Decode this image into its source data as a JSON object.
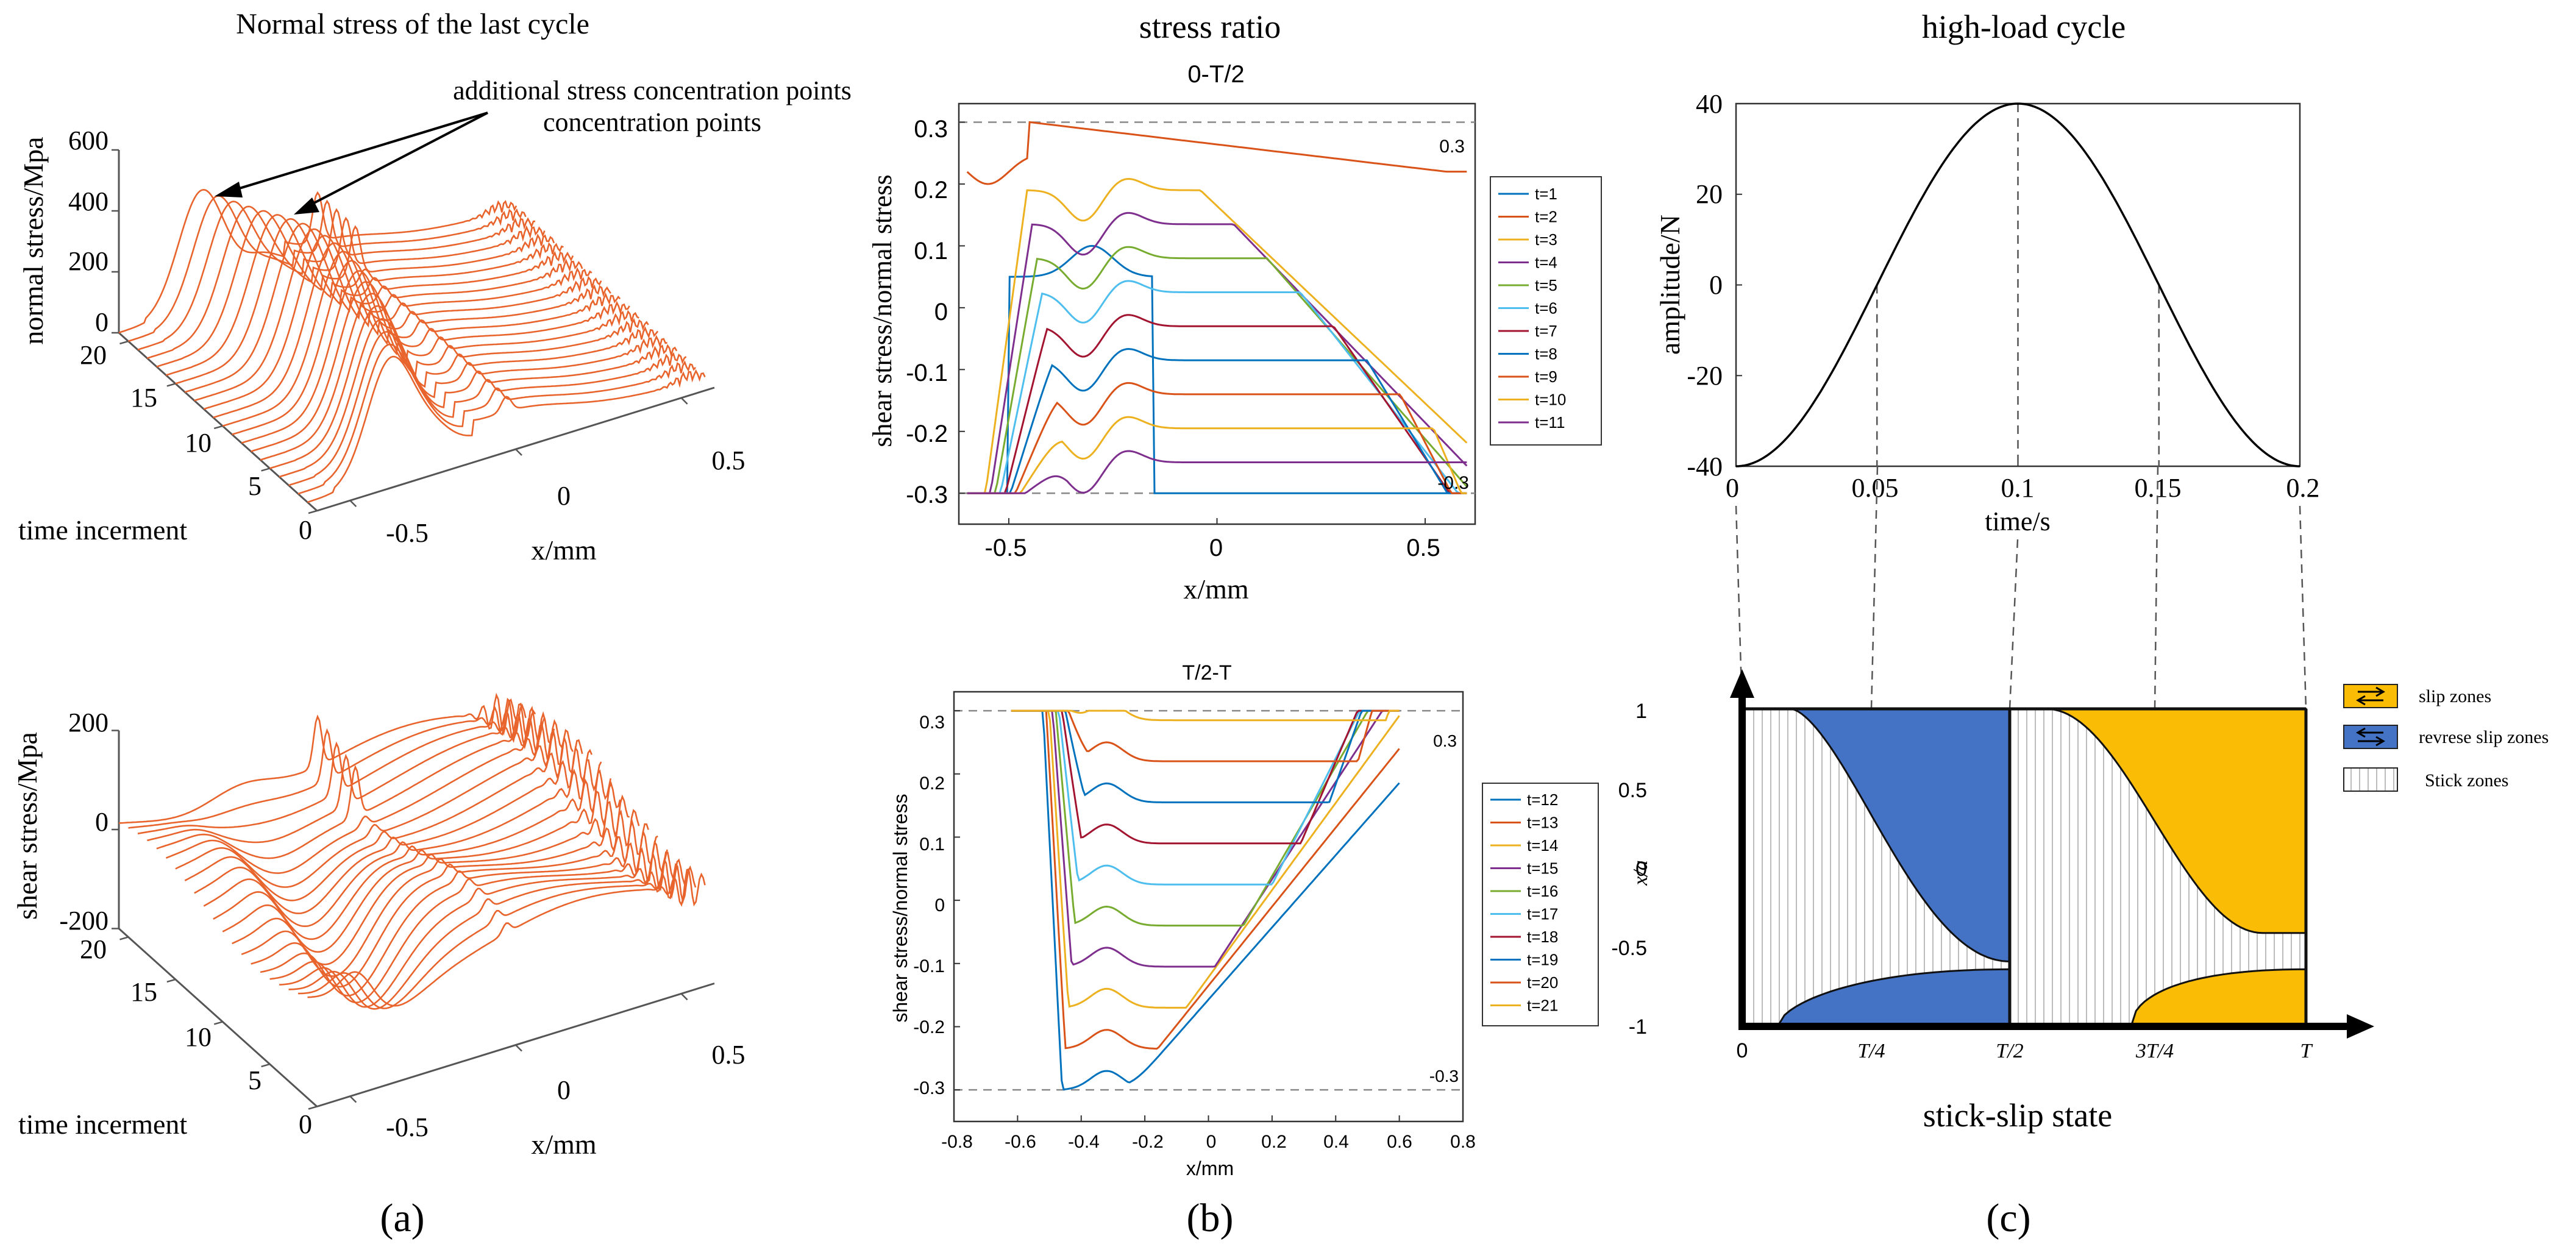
{
  "panel_a": {
    "title": "Normal stress of the last cycle",
    "annotation": "additional stress concentration points",
    "label": "(a)",
    "colors": {
      "curve": "#E8642C",
      "axis": "#555555"
    },
    "chart_data": [
      {
        "type": "waterfall3d",
        "zlabel": "normal stress/Mpa",
        "xlabel": "x/mm",
        "ylabel": "time incerment",
        "xticks": [
          "-0.5",
          "0",
          "0.5"
        ],
        "yticks": [
          "0",
          "5",
          "10",
          "15",
          "20"
        ],
        "zticks": [
          "0",
          "200",
          "400",
          "600"
        ],
        "x_range": [
          -0.6,
          0.6
        ],
        "y_range": [
          0,
          21
        ],
        "z_range": [
          0,
          600
        ],
        "annotation": "additional stress concentration points"
      },
      {
        "type": "waterfall3d",
        "zlabel": "shear stress/Mpa",
        "xlabel": "x/mm",
        "ylabel": "time incerment",
        "xticks": [
          "-0.5",
          "0",
          "0.5"
        ],
        "yticks": [
          "0",
          "5",
          "10",
          "15",
          "20"
        ],
        "zticks": [
          "-200",
          "0",
          "200"
        ],
        "x_range": [
          -0.6,
          0.6
        ],
        "y_range": [
          0,
          21
        ],
        "z_range": [
          -200,
          200
        ]
      }
    ]
  },
  "panel_b": {
    "title": "stress ratio",
    "label": "(b)",
    "chart_data": [
      {
        "type": "line",
        "title": "0-T/2",
        "xlabel": "x/mm",
        "ylabel": "shear stress/normal stress",
        "xlim": [
          -0.62,
          0.62
        ],
        "ylim": [
          -0.35,
          0.33
        ],
        "xticks": [
          "-0.5",
          "0",
          "0.5"
        ],
        "yticks": [
          "0.3",
          "0.2",
          "0.1",
          "0",
          "-0.1",
          "-0.2",
          "-0.3"
        ],
        "limits": [
          0.3,
          -0.3
        ],
        "limit_labels": [
          "0.3",
          "-0.3"
        ],
        "legend": [
          "t=1",
          "t=2",
          "t=3",
          "t=4",
          "t=5",
          "t=6",
          "t=7",
          "t=8",
          "t=9",
          "t=10",
          "t=11"
        ],
        "series_colors": [
          "#0072BD",
          "#D95319",
          "#EDB120",
          "#7E2F8E",
          "#77AC30",
          "#4DBEEE",
          "#A2142F",
          "#0072BD",
          "#D95319",
          "#EDB120",
          "#7E2F8E"
        ]
      },
      {
        "type": "line",
        "title": "T/2-T",
        "xlabel": "x/mm",
        "ylabel": "shear stress/normal stress",
        "xlim": [
          -0.8,
          0.8
        ],
        "ylim": [
          -0.35,
          0.33
        ],
        "xticks": [
          "-0.8",
          "-0.6",
          "-0.4",
          "-0.2",
          "0",
          "0.2",
          "0.4",
          "0.6",
          "0.8"
        ],
        "yticks": [
          "0.3",
          "0.2",
          "0.1",
          "0",
          "-0.1",
          "-0.2",
          "-0.3"
        ],
        "limits": [
          0.3,
          -0.3
        ],
        "limit_labels": [
          "0.3",
          "-0.3"
        ],
        "legend": [
          "t=12",
          "t=13",
          "t=14",
          "t=15",
          "t=16",
          "t=17",
          "t=18",
          "t=19",
          "t=20",
          "t=21"
        ],
        "series_colors": [
          "#0072BD",
          "#D95319",
          "#EDB120",
          "#7E2F8E",
          "#77AC30",
          "#4DBEEE",
          "#A2142F",
          "#0072BD",
          "#D95319",
          "#EDB120"
        ]
      }
    ]
  },
  "panel_c": {
    "title": "high-load cycle",
    "label": "(c)",
    "chart_data": [
      {
        "type": "line",
        "xlabel": "time/s",
        "ylabel": "amplitude/N",
        "xlim": [
          0,
          0.2
        ],
        "ylim": [
          -40,
          40
        ],
        "xticks": [
          "0",
          "0.05",
          "0.1",
          "0.15",
          "0.2"
        ],
        "yticks": [
          "40",
          "20",
          "0",
          "-20",
          "-40"
        ],
        "x": [
          0,
          0.025,
          0.05,
          0.075,
          0.1,
          0.125,
          0.15,
          0.175,
          0.2
        ],
        "y": [
          -40,
          -28.3,
          0,
          28.3,
          40,
          28.3,
          0,
          -28.3,
          -40
        ]
      },
      {
        "type": "area",
        "title": "stick-slip state",
        "ylabel": "x/a",
        "xticks": [
          "0",
          "T/4",
          "T/2",
          "3T/4",
          "T"
        ],
        "yticks": [
          "1",
          "0.5",
          "0",
          "-0.5",
          "-1"
        ],
        "ylim": [
          -1,
          1
        ],
        "legend": [
          "slip zones",
          "revrese slip zones",
          "Stick zones"
        ],
        "colors": {
          "slip": "#FBBC05",
          "reverse_slip": "#4472C4",
          "stick_hatch": "#BDBDBD"
        }
      }
    ]
  }
}
